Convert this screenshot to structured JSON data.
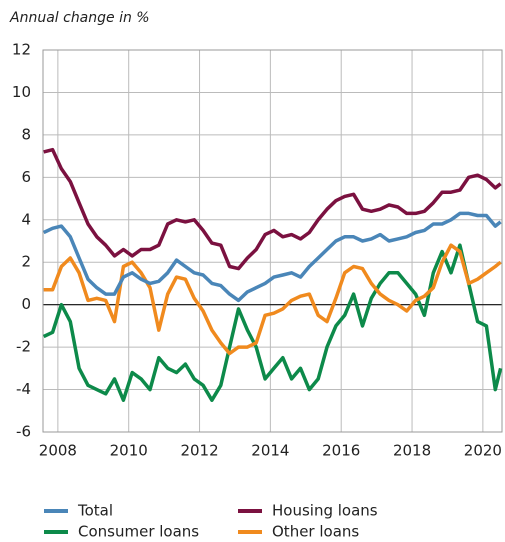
{
  "chart_data": {
    "type": "line",
    "title": "Annual change in %",
    "x": [
      2007.6,
      2007.85,
      2008.1,
      2008.35,
      2008.6,
      2008.85,
      2009.1,
      2009.35,
      2009.6,
      2009.85,
      2010.1,
      2010.35,
      2010.6,
      2010.85,
      2011.1,
      2011.35,
      2011.6,
      2011.85,
      2012.1,
      2012.35,
      2012.6,
      2012.85,
      2013.1,
      2013.35,
      2013.6,
      2013.85,
      2014.1,
      2014.35,
      2014.6,
      2014.85,
      2015.1,
      2015.35,
      2015.6,
      2015.85,
      2016.1,
      2016.35,
      2016.6,
      2016.85,
      2017.1,
      2017.35,
      2017.6,
      2017.85,
      2018.1,
      2018.35,
      2018.6,
      2018.85,
      2019.1,
      2019.35,
      2019.6,
      2019.85,
      2020.1,
      2020.35,
      2020.5
    ],
    "series": [
      {
        "name": "Total",
        "color": "#4a86b8",
        "values": [
          3.4,
          3.6,
          3.7,
          3.2,
          2.2,
          1.2,
          0.8,
          0.5,
          0.5,
          1.3,
          1.5,
          1.2,
          1.0,
          1.1,
          1.5,
          2.1,
          1.8,
          1.5,
          1.4,
          1.0,
          0.9,
          0.5,
          0.2,
          0.6,
          0.8,
          1.0,
          1.3,
          1.4,
          1.5,
          1.3,
          1.8,
          2.2,
          2.6,
          3.0,
          3.2,
          3.2,
          3.0,
          3.1,
          3.3,
          3.0,
          3.1,
          3.2,
          3.4,
          3.5,
          3.8,
          3.8,
          4.0,
          4.3,
          4.3,
          4.2,
          4.2,
          3.7,
          3.9
        ]
      },
      {
        "name": "Housing loans",
        "color": "#7b1140",
        "values": [
          7.2,
          7.3,
          6.4,
          5.8,
          4.8,
          3.8,
          3.2,
          2.8,
          2.3,
          2.6,
          2.3,
          2.6,
          2.6,
          2.8,
          3.8,
          4.0,
          3.9,
          4.0,
          3.5,
          2.9,
          2.8,
          1.8,
          1.7,
          2.2,
          2.6,
          3.3,
          3.5,
          3.2,
          3.3,
          3.1,
          3.4,
          4.0,
          4.5,
          4.9,
          5.1,
          5.2,
          4.5,
          4.4,
          4.5,
          4.7,
          4.6,
          4.3,
          4.3,
          4.4,
          4.8,
          5.3,
          5.3,
          5.4,
          6.0,
          6.1,
          5.9,
          5.5,
          5.7
        ]
      },
      {
        "name": "Consumer loans",
        "color": "#0d8a4a",
        "values": [
          -1.5,
          -1.3,
          0,
          -0.8,
          -3.0,
          -3.8,
          -4.0,
          -4.2,
          -3.5,
          -4.5,
          -3.2,
          -3.5,
          -4.0,
          -2.5,
          -3.0,
          -3.2,
          -2.8,
          -3.5,
          -3.8,
          -4.5,
          -3.8,
          -2.0,
          -0.2,
          -1.2,
          -2.0,
          -3.5,
          -3.0,
          -2.5,
          -3.5,
          -3.0,
          -4.0,
          -3.5,
          -2.0,
          -1.0,
          -0.5,
          0.5,
          -1.0,
          0.3,
          1.0,
          1.5,
          1.5,
          1.0,
          0.5,
          -0.5,
          1.5,
          2.5,
          1.5,
          2.8,
          1.0,
          -0.8,
          -1.0,
          -4.0,
          -3.0
        ]
      },
      {
        "name": "Other loans",
        "color": "#f08a1e",
        "values": [
          0.7,
          0.7,
          1.8,
          2.2,
          1.5,
          0.2,
          0.3,
          0.2,
          -0.8,
          1.8,
          2.0,
          1.5,
          0.8,
          -1.2,
          0.5,
          1.3,
          1.2,
          0.3,
          -0.3,
          -1.2,
          -1.8,
          -2.3,
          -2.0,
          -2.0,
          -1.8,
          -0.5,
          -0.4,
          -0.2,
          0.2,
          0.4,
          0.5,
          -0.5,
          -0.8,
          0.3,
          1.5,
          1.8,
          1.7,
          1.0,
          0.5,
          0.2,
          0.0,
          -0.3,
          0.2,
          0.4,
          0.8,
          2.0,
          2.8,
          2.5,
          1.0,
          1.2,
          1.5,
          1.8,
          2.0
        ]
      }
    ],
    "xlim": [
      2007.58,
      2020.54
    ],
    "xticks": [
      2008,
      2010,
      2012,
      2014,
      2016,
      2018,
      2020
    ],
    "ylim": [
      -6,
      12
    ],
    "yticks": [
      -6,
      -4,
      -2,
      0,
      2,
      4,
      6,
      8,
      10,
      12
    ],
    "grid": true
  }
}
